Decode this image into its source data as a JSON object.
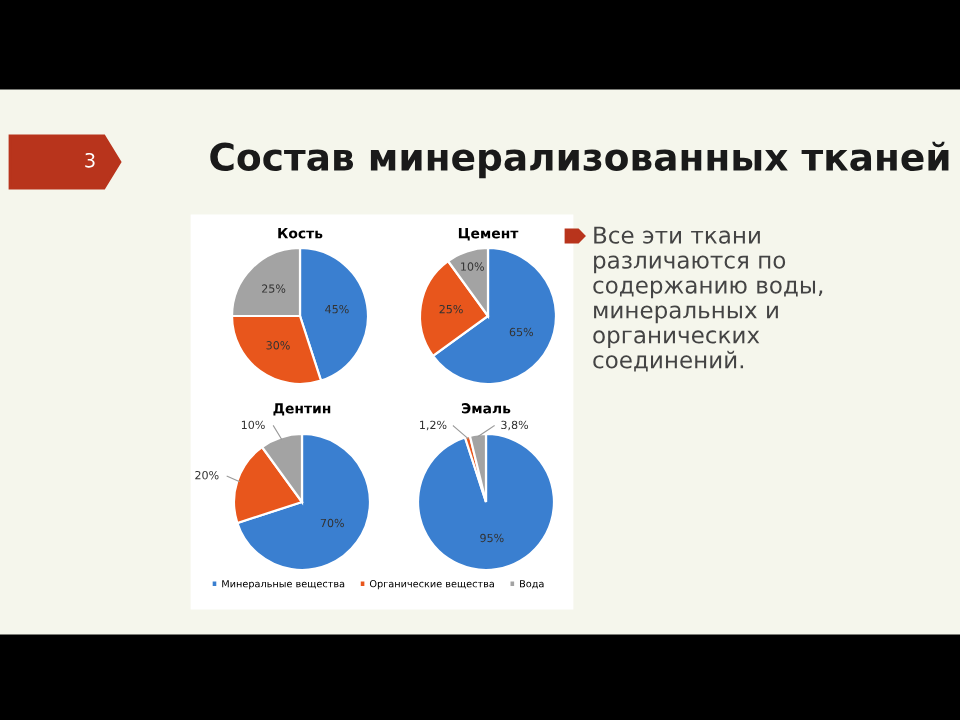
{
  "chart_data": [
    {
      "type": "pie",
      "title": "Кость",
      "categories": [
        "Минеральные вещества",
        "Органические вещества",
        "Вода"
      ],
      "values": [
        45,
        30,
        25
      ],
      "colors": [
        "#3a7fd0",
        "#e8561c",
        "#a3a3a3"
      ],
      "value_labels": [
        "45%",
        "30%",
        "25%"
      ],
      "legend": "bottom"
    },
    {
      "type": "pie",
      "title": "Цемент",
      "categories": [
        null,
        null,
        null
      ],
      "values": [
        65,
        25,
        10
      ],
      "colors": [
        "#3a7fd0",
        "#e8561c",
        "#a3a3a3"
      ],
      "value_labels": [
        "65%",
        "25%",
        "10%"
      ]
    },
    {
      "type": "pie",
      "title": "Дентин",
      "categories": [
        null,
        null,
        null
      ],
      "values": [
        70,
        20,
        10
      ],
      "colors": [
        "#3a7fd0",
        "#e8561c",
        "#a3a3a3"
      ],
      "value_labels": [
        "70%",
        "20%",
        "10%"
      ]
    },
    {
      "type": "pie",
      "title": "Эмаль",
      "categories": [
        null,
        null,
        null
      ],
      "values": [
        95,
        1.2,
        3.8
      ],
      "colors": [
        "#3a7fd0",
        "#e8561c",
        "#a3a3a3"
      ],
      "value_labels": [
        "95%",
        "1,2%",
        "3,8%"
      ]
    },
    {
      "type": "other",
      "title": "Состав минерализованных тканей",
      "annotations": [
        "3",
        "Все эти ткани\nразличаются по\nсодержанию воды,\nминеральных и\nорганических\nсоединений."
      ]
    }
  ]
}
